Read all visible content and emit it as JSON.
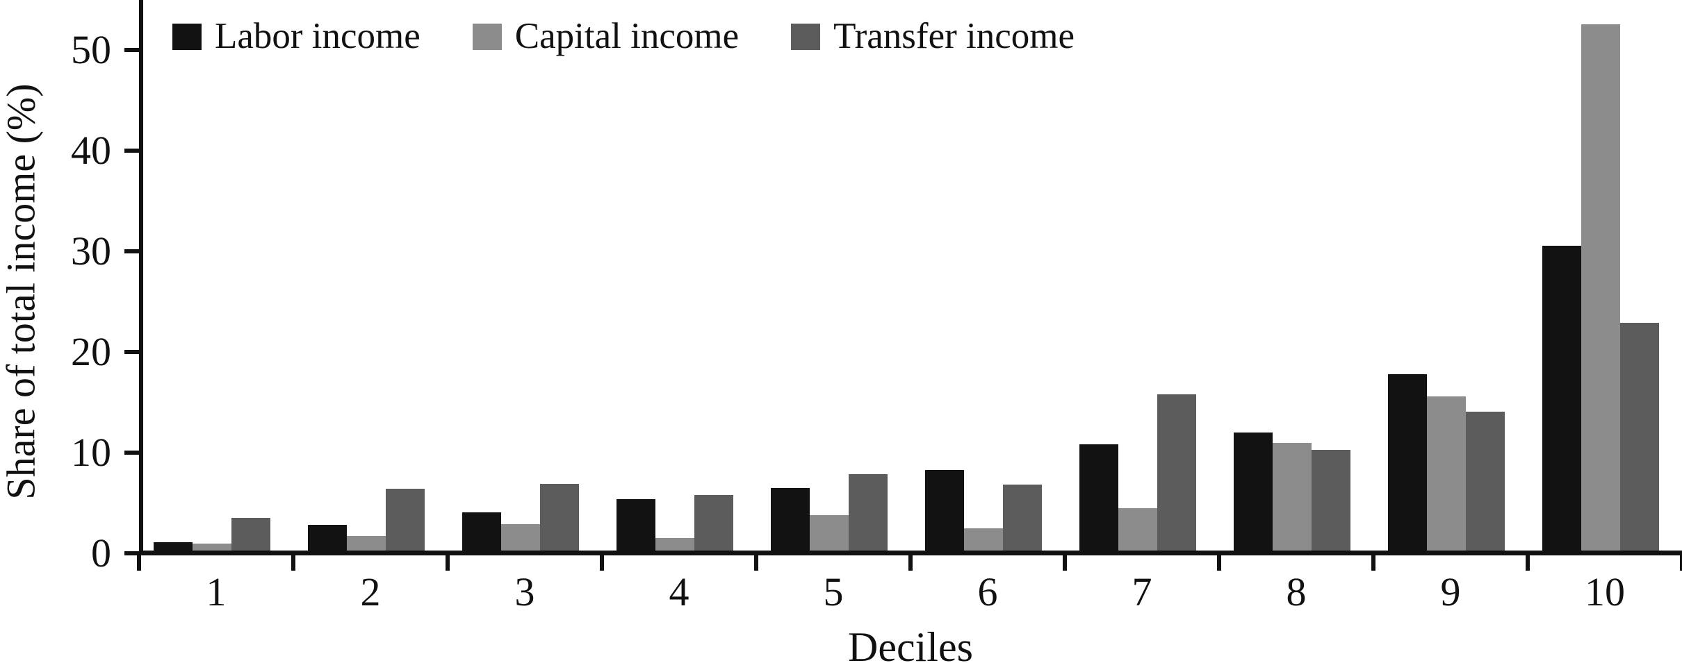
{
  "figure": {
    "background": "#ffffff",
    "axis_color": "#111111",
    "text_color": "#111111"
  },
  "chart_data": {
    "type": "bar",
    "title": "",
    "xlabel": "Deciles",
    "ylabel": "Share of total income (%)",
    "categories": [
      "1",
      "2",
      "3",
      "4",
      "5",
      "6",
      "7",
      "8",
      "9",
      "10"
    ],
    "series": [
      {
        "name": "Labor income",
        "color": "#121212",
        "values": [
          1.1,
          2.8,
          4.1,
          5.4,
          6.5,
          8.3,
          10.8,
          12.0,
          17.8,
          30.6
        ]
      },
      {
        "name": "Capital income",
        "color": "#8c8c8c",
        "values": [
          1.0,
          1.7,
          2.9,
          1.5,
          3.8,
          2.5,
          4.5,
          11.0,
          15.6,
          52.6
        ]
      },
      {
        "name": "Transfer income",
        "color": "#5c5c5c",
        "values": [
          3.5,
          6.4,
          6.9,
          5.8,
          7.9,
          6.8,
          15.8,
          10.3,
          14.1,
          22.9
        ]
      }
    ],
    "yticks": [
      0,
      10,
      20,
      30,
      40,
      50
    ],
    "ylim": [
      0,
      55
    ],
    "grid": false,
    "legend_position": "top-left"
  }
}
